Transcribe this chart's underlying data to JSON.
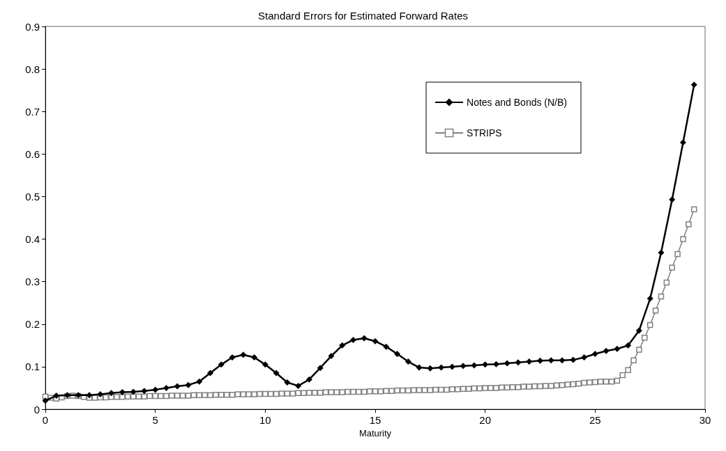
{
  "chart_data": {
    "type": "line",
    "title": "Standard Errors for Estimated Forward Rates",
    "xlabel": "Maturity",
    "xlim": [
      0,
      30
    ],
    "xticks": [
      0,
      5,
      10,
      15,
      20,
      25,
      30
    ],
    "ylim": [
      0,
      0.9
    ],
    "yticks": [
      0,
      0.1,
      0.2,
      0.3,
      0.4,
      0.5,
      0.6,
      0.7,
      0.8,
      0.9
    ],
    "grid": false,
    "legend": "top right",
    "series": [
      {
        "name": "Notes and Bonds (N/B)",
        "color": "#000000",
        "marker": "diamond",
        "x": [
          0,
          0.5,
          1,
          1.5,
          2,
          2.5,
          3,
          3.5,
          4,
          4.5,
          5,
          5.5,
          6,
          6.5,
          7,
          7.5,
          8,
          8.5,
          9,
          9.5,
          10,
          10.5,
          11,
          11.5,
          12,
          12.5,
          13,
          13.5,
          14,
          14.5,
          15,
          15.5,
          16,
          16.5,
          17,
          17.5,
          18,
          18.5,
          19,
          19.5,
          20,
          20.5,
          21,
          21.5,
          22,
          22.5,
          23,
          23.5,
          24,
          24.5,
          25,
          25.5,
          26,
          26.5,
          27,
          27.5,
          28,
          28.5,
          29,
          29.5
        ],
        "values": [
          0.02,
          0.032,
          0.033,
          0.033,
          0.033,
          0.035,
          0.038,
          0.04,
          0.041,
          0.043,
          0.046,
          0.05,
          0.054,
          0.057,
          0.065,
          0.085,
          0.105,
          0.122,
          0.128,
          0.122,
          0.105,
          0.085,
          0.063,
          0.055,
          0.07,
          0.097,
          0.125,
          0.15,
          0.163,
          0.167,
          0.16,
          0.147,
          0.13,
          0.112,
          0.098,
          0.096,
          0.098,
          0.1,
          0.102,
          0.103,
          0.105,
          0.106,
          0.108,
          0.11,
          0.112,
          0.114,
          0.115,
          0.115,
          0.116,
          0.122,
          0.13,
          0.137,
          0.142,
          0.15,
          0.185,
          0.26,
          0.368,
          0.493,
          0.627,
          0.763
        ]
      },
      {
        "name": "STRIPS",
        "color": "#808080",
        "marker": "square",
        "x": [
          0,
          0.25,
          0.5,
          0.75,
          1,
          1.25,
          1.5,
          1.75,
          2,
          2.25,
          2.5,
          2.75,
          3,
          3.25,
          3.5,
          3.75,
          4,
          4.25,
          4.5,
          4.75,
          5,
          5.25,
          5.5,
          5.75,
          6,
          6.25,
          6.5,
          6.75,
          7,
          7.25,
          7.5,
          7.75,
          8,
          8.25,
          8.5,
          8.75,
          9,
          9.25,
          9.5,
          9.75,
          10,
          10.25,
          10.5,
          10.75,
          11,
          11.25,
          11.5,
          11.75,
          12,
          12.25,
          12.5,
          12.75,
          13,
          13.25,
          13.5,
          13.75,
          14,
          14.25,
          14.5,
          14.75,
          15,
          15.25,
          15.5,
          15.75,
          16,
          16.25,
          16.5,
          16.75,
          17,
          17.25,
          17.5,
          17.75,
          18,
          18.25,
          18.5,
          18.75,
          19,
          19.25,
          19.5,
          19.75,
          20,
          20.25,
          20.5,
          20.75,
          21,
          21.25,
          21.5,
          21.75,
          22,
          22.25,
          22.5,
          22.75,
          23,
          23.25,
          23.5,
          23.75,
          24,
          24.25,
          24.5,
          24.75,
          25,
          25.25,
          25.5,
          25.75,
          26,
          26.25,
          26.5,
          26.75,
          27,
          27.25,
          27.5,
          27.75,
          28,
          28.25,
          28.5,
          28.75,
          29,
          29.25,
          29.5
        ],
        "values": [
          0.03,
          0.027,
          0.025,
          0.028,
          0.031,
          0.032,
          0.031,
          0.029,
          0.027,
          0.027,
          0.028,
          0.028,
          0.029,
          0.029,
          0.029,
          0.03,
          0.03,
          0.03,
          0.03,
          0.031,
          0.031,
          0.031,
          0.031,
          0.032,
          0.032,
          0.032,
          0.032,
          0.033,
          0.033,
          0.033,
          0.033,
          0.034,
          0.034,
          0.034,
          0.034,
          0.035,
          0.035,
          0.035,
          0.035,
          0.036,
          0.036,
          0.036,
          0.036,
          0.037,
          0.037,
          0.037,
          0.038,
          0.038,
          0.039,
          0.039,
          0.039,
          0.04,
          0.04,
          0.04,
          0.04,
          0.041,
          0.041,
          0.041,
          0.041,
          0.042,
          0.042,
          0.042,
          0.043,
          0.043,
          0.044,
          0.044,
          0.044,
          0.045,
          0.045,
          0.045,
          0.045,
          0.046,
          0.046,
          0.046,
          0.047,
          0.047,
          0.048,
          0.048,
          0.049,
          0.049,
          0.05,
          0.05,
          0.05,
          0.051,
          0.051,
          0.052,
          0.052,
          0.053,
          0.053,
          0.054,
          0.054,
          0.055,
          0.055,
          0.056,
          0.057,
          0.058,
          0.059,
          0.06,
          0.062,
          0.063,
          0.064,
          0.065,
          0.065,
          0.065,
          0.067,
          0.08,
          0.092,
          0.115,
          0.14,
          0.168,
          0.198,
          0.232,
          0.265,
          0.298,
          0.333,
          0.365,
          0.4,
          0.435,
          0.47
        ]
      }
    ]
  }
}
